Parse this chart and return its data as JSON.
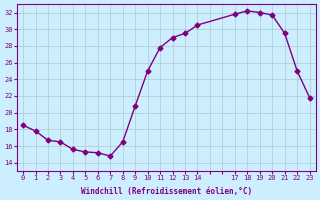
{
  "x": [
    0,
    1,
    2,
    3,
    4,
    5,
    6,
    7,
    8,
    9,
    10,
    11,
    12,
    13,
    14,
    17,
    18,
    19,
    20,
    21,
    22,
    23
  ],
  "y": [
    18.5,
    17.8,
    16.7,
    16.5,
    15.6,
    15.3,
    15.2,
    14.8,
    16.5,
    20.8,
    25.0,
    27.8,
    29.0,
    29.5,
    30.5,
    31.8,
    32.2,
    32.0,
    31.7,
    29.5,
    25.0,
    21.8
  ],
  "line_color": "#800080",
  "marker": "D",
  "marker_size": 2.5,
  "bg_color": "#cceeff",
  "grid_color": "#aacccc",
  "xlabel": "Windchill (Refroidissement éolien,°C)",
  "xlabel_color": "#800080",
  "tick_color": "#800080",
  "ylim": [
    13,
    33
  ],
  "yticks": [
    14,
    16,
    18,
    20,
    22,
    24,
    26,
    28,
    30,
    32
  ],
  "all_xticks": [
    0,
    1,
    2,
    3,
    4,
    5,
    6,
    7,
    8,
    9,
    10,
    11,
    12,
    13,
    14,
    15,
    16,
    17,
    18,
    19,
    20,
    21,
    22,
    23
  ],
  "xtick_labels": [
    "0",
    "1",
    "2",
    "3",
    "4",
    "5",
    "6",
    "7",
    "8",
    "9",
    "10",
    "11",
    "12",
    "13",
    "14",
    "",
    "",
    "17",
    "18",
    "19",
    "20",
    "21",
    "22",
    "23"
  ]
}
